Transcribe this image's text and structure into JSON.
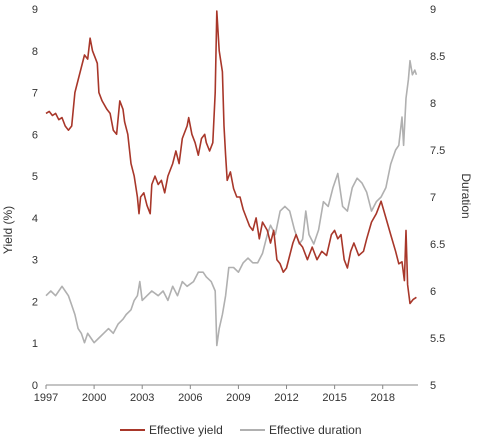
{
  "chart_data": {
    "type": "line",
    "title": "",
    "xlabel": "",
    "ylabel_left": "Yield (%)",
    "ylabel_right": "Duration",
    "xlim": [
      1997,
      2020.2
    ],
    "ylim_left": [
      0,
      9
    ],
    "ylim_right": [
      5,
      9
    ],
    "x_ticks": [
      "1997",
      "2000",
      "2003",
      "2006",
      "2009",
      "2012",
      "2015",
      "2018"
    ],
    "y_ticks_left": [
      "0",
      "1",
      "2",
      "3",
      "4",
      "5",
      "6",
      "7",
      "8",
      "9"
    ],
    "y_ticks_right": [
      "5",
      "5.5",
      "6",
      "6.5",
      "7",
      "7.5",
      "8",
      "8.5",
      "9"
    ],
    "grid": false,
    "legend_position": "bottom",
    "series": [
      {
        "name": "Effective yield",
        "axis": "left",
        "color": "#a8372a",
        "points": [
          [
            1997.0,
            6.5
          ],
          [
            1997.2,
            6.55
          ],
          [
            1997.4,
            6.45
          ],
          [
            1997.6,
            6.5
          ],
          [
            1997.8,
            6.35
          ],
          [
            1998.0,
            6.4
          ],
          [
            1998.2,
            6.2
          ],
          [
            1998.4,
            6.1
          ],
          [
            1998.6,
            6.2
          ],
          [
            1998.8,
            7.0
          ],
          [
            1999.0,
            7.3
          ],
          [
            1999.2,
            7.6
          ],
          [
            1999.4,
            7.9
          ],
          [
            1999.6,
            7.8
          ],
          [
            1999.75,
            8.3
          ],
          [
            1999.9,
            8.0
          ],
          [
            2000.1,
            7.8
          ],
          [
            2000.2,
            7.7
          ],
          [
            2000.3,
            7.0
          ],
          [
            2000.5,
            6.8
          ],
          [
            2000.8,
            6.6
          ],
          [
            2001.0,
            6.5
          ],
          [
            2001.2,
            6.1
          ],
          [
            2001.4,
            6.0
          ],
          [
            2001.6,
            6.8
          ],
          [
            2001.8,
            6.6
          ],
          [
            2001.9,
            6.3
          ],
          [
            2002.1,
            6.0
          ],
          [
            2002.3,
            5.3
          ],
          [
            2002.5,
            5.0
          ],
          [
            2002.7,
            4.5
          ],
          [
            2002.8,
            4.1
          ],
          [
            2002.9,
            4.5
          ],
          [
            2003.1,
            4.6
          ],
          [
            2003.3,
            4.3
          ],
          [
            2003.5,
            4.1
          ],
          [
            2003.6,
            4.8
          ],
          [
            2003.8,
            5.0
          ],
          [
            2004.0,
            4.8
          ],
          [
            2004.2,
            4.9
          ],
          [
            2004.4,
            4.6
          ],
          [
            2004.6,
            5.0
          ],
          [
            2004.9,
            5.3
          ],
          [
            2005.1,
            5.6
          ],
          [
            2005.3,
            5.3
          ],
          [
            2005.5,
            5.9
          ],
          [
            2005.8,
            6.2
          ],
          [
            2005.9,
            6.4
          ],
          [
            2006.1,
            6.0
          ],
          [
            2006.3,
            5.8
          ],
          [
            2006.5,
            5.5
          ],
          [
            2006.7,
            5.9
          ],
          [
            2006.9,
            6.0
          ],
          [
            2007.0,
            5.8
          ],
          [
            2007.2,
            5.6
          ],
          [
            2007.4,
            5.8
          ],
          [
            2007.55,
            7.0
          ],
          [
            2007.65,
            8.95
          ],
          [
            2007.8,
            8.0
          ],
          [
            2008.0,
            7.5
          ],
          [
            2008.1,
            6.2
          ],
          [
            2008.2,
            5.5
          ],
          [
            2008.3,
            4.9
          ],
          [
            2008.5,
            5.1
          ],
          [
            2008.7,
            4.7
          ],
          [
            2008.9,
            4.5
          ],
          [
            2009.1,
            4.5
          ],
          [
            2009.3,
            4.2
          ],
          [
            2009.5,
            4.0
          ],
          [
            2009.7,
            3.8
          ],
          [
            2009.9,
            3.7
          ],
          [
            2010.1,
            4.0
          ],
          [
            2010.3,
            3.5
          ],
          [
            2010.5,
            3.9
          ],
          [
            2010.8,
            3.7
          ],
          [
            2011.0,
            3.4
          ],
          [
            2011.2,
            3.7
          ],
          [
            2011.4,
            3.0
          ],
          [
            2011.6,
            2.9
          ],
          [
            2011.8,
            2.7
          ],
          [
            2012.0,
            2.8
          ],
          [
            2012.2,
            3.1
          ],
          [
            2012.4,
            3.4
          ],
          [
            2012.6,
            3.6
          ],
          [
            2012.8,
            3.4
          ],
          [
            2013.0,
            3.3
          ],
          [
            2013.3,
            3.0
          ],
          [
            2013.6,
            3.3
          ],
          [
            2013.9,
            3.0
          ],
          [
            2014.2,
            3.2
          ],
          [
            2014.5,
            3.1
          ],
          [
            2014.8,
            3.6
          ],
          [
            2015.0,
            3.7
          ],
          [
            2015.2,
            3.5
          ],
          [
            2015.4,
            3.6
          ],
          [
            2015.6,
            3.0
          ],
          [
            2015.8,
            2.8
          ],
          [
            2016.0,
            3.2
          ],
          [
            2016.2,
            3.4
          ],
          [
            2016.5,
            3.1
          ],
          [
            2016.8,
            3.2
          ],
          [
            2017.0,
            3.5
          ],
          [
            2017.3,
            3.9
          ],
          [
            2017.6,
            4.1
          ],
          [
            2017.9,
            4.4
          ],
          [
            2018.2,
            4.0
          ],
          [
            2018.5,
            3.6
          ],
          [
            2018.8,
            3.2
          ],
          [
            2019.0,
            2.9
          ],
          [
            2019.2,
            2.95
          ],
          [
            2019.35,
            2.5
          ],
          [
            2019.45,
            3.7
          ],
          [
            2019.55,
            2.4
          ],
          [
            2019.7,
            1.95
          ],
          [
            2019.9,
            2.05
          ],
          [
            2020.1,
            2.1
          ]
        ]
      },
      {
        "name": "Effective duration",
        "axis": "right",
        "color": "#b0b0b0",
        "points": [
          [
            1997.0,
            5.95
          ],
          [
            1997.3,
            6.0
          ],
          [
            1997.6,
            5.95
          ],
          [
            1997.8,
            6.0
          ],
          [
            1998.0,
            6.05
          ],
          [
            1998.2,
            6.0
          ],
          [
            1998.4,
            5.95
          ],
          [
            1998.6,
            5.85
          ],
          [
            1998.8,
            5.75
          ],
          [
            1999.0,
            5.6
          ],
          [
            1999.2,
            5.55
          ],
          [
            1999.4,
            5.45
          ],
          [
            1999.6,
            5.55
          ],
          [
            1999.8,
            5.5
          ],
          [
            2000.0,
            5.45
          ],
          [
            2000.3,
            5.5
          ],
          [
            2000.6,
            5.55
          ],
          [
            2000.9,
            5.6
          ],
          [
            2001.2,
            5.55
          ],
          [
            2001.5,
            5.65
          ],
          [
            2001.8,
            5.7
          ],
          [
            2002.0,
            5.75
          ],
          [
            2002.3,
            5.8
          ],
          [
            2002.5,
            5.9
          ],
          [
            2002.7,
            5.95
          ],
          [
            2002.85,
            6.1
          ],
          [
            2003.0,
            5.9
          ],
          [
            2003.3,
            5.95
          ],
          [
            2003.6,
            6.0
          ],
          [
            2004.0,
            5.95
          ],
          [
            2004.3,
            6.0
          ],
          [
            2004.6,
            5.9
          ],
          [
            2004.9,
            6.05
          ],
          [
            2005.2,
            5.95
          ],
          [
            2005.5,
            6.1
          ],
          [
            2005.8,
            6.05
          ],
          [
            2006.2,
            6.1
          ],
          [
            2006.5,
            6.2
          ],
          [
            2006.8,
            6.2
          ],
          [
            2007.0,
            6.15
          ],
          [
            2007.3,
            6.1
          ],
          [
            2007.55,
            6.0
          ],
          [
            2007.65,
            5.42
          ],
          [
            2007.8,
            5.6
          ],
          [
            2008.0,
            5.75
          ],
          [
            2008.2,
            5.95
          ],
          [
            2008.4,
            6.25
          ],
          [
            2008.7,
            6.25
          ],
          [
            2009.0,
            6.2
          ],
          [
            2009.3,
            6.3
          ],
          [
            2009.6,
            6.35
          ],
          [
            2009.9,
            6.3
          ],
          [
            2010.2,
            6.3
          ],
          [
            2010.5,
            6.4
          ],
          [
            2010.8,
            6.6
          ],
          [
            2011.0,
            6.7
          ],
          [
            2011.3,
            6.6
          ],
          [
            2011.6,
            6.85
          ],
          [
            2011.9,
            6.9
          ],
          [
            2012.2,
            6.85
          ],
          [
            2012.5,
            6.65
          ],
          [
            2012.8,
            6.5
          ],
          [
            2013.0,
            6.55
          ],
          [
            2013.2,
            6.85
          ],
          [
            2013.4,
            6.6
          ],
          [
            2013.7,
            6.5
          ],
          [
            2014.0,
            6.65
          ],
          [
            2014.3,
            6.95
          ],
          [
            2014.6,
            6.9
          ],
          [
            2014.9,
            7.1
          ],
          [
            2015.2,
            7.25
          ],
          [
            2015.5,
            6.9
          ],
          [
            2015.8,
            6.85
          ],
          [
            2016.1,
            7.1
          ],
          [
            2016.4,
            7.2
          ],
          [
            2016.7,
            7.15
          ],
          [
            2017.0,
            7.05
          ],
          [
            2017.3,
            6.85
          ],
          [
            2017.6,
            6.95
          ],
          [
            2017.9,
            7.0
          ],
          [
            2018.2,
            7.1
          ],
          [
            2018.5,
            7.35
          ],
          [
            2018.8,
            7.5
          ],
          [
            2019.0,
            7.55
          ],
          [
            2019.2,
            7.85
          ],
          [
            2019.3,
            7.55
          ],
          [
            2019.45,
            8.05
          ],
          [
            2019.6,
            8.25
          ],
          [
            2019.7,
            8.45
          ],
          [
            2019.85,
            8.3
          ],
          [
            2020.0,
            8.35
          ],
          [
            2020.1,
            8.3
          ]
        ]
      }
    ]
  }
}
